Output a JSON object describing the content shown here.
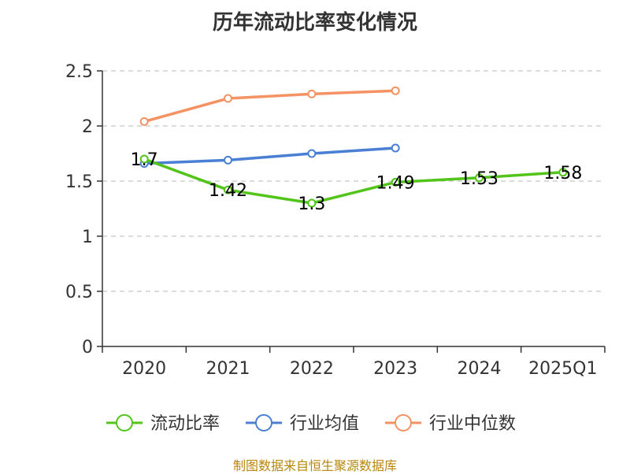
{
  "chart_data": {
    "type": "line",
    "title": "历年流动比率变化情况",
    "categories": [
      "2020",
      "2021",
      "2022",
      "2023",
      "2024",
      "2025Q1"
    ],
    "ylim": [
      0,
      2.5
    ],
    "yticks": [
      "0",
      "0.5",
      "1",
      "1.5",
      "2",
      "2.5"
    ],
    "grid": true,
    "legend_position": "bottom",
    "series": [
      {
        "name": "流动比率",
        "color": "#52c41a",
        "values": [
          1.7,
          1.42,
          1.3,
          1.49,
          1.53,
          1.58
        ],
        "labels": [
          "1.7",
          "1.42",
          "1.3",
          "1.49",
          "1.53",
          "1.58"
        ]
      },
      {
        "name": "行业均值",
        "color": "#4a7fd4",
        "values": [
          1.66,
          1.69,
          1.75,
          1.8,
          null,
          null
        ]
      },
      {
        "name": "行业中位数",
        "color": "#f59263",
        "values": [
          2.04,
          2.25,
          2.29,
          2.32,
          null,
          null
        ]
      }
    ]
  },
  "source_note": "制图数据来自恒生聚源数据库"
}
